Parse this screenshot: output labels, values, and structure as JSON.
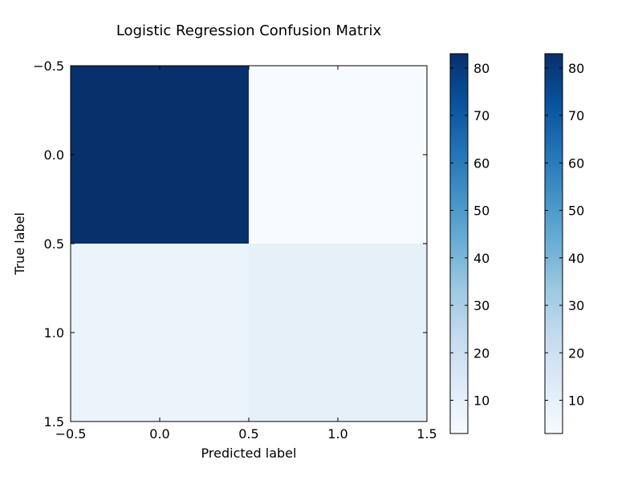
{
  "chart_data": {
    "type": "heatmap",
    "title": "Logistic Regression Confusion Matrix",
    "xlabel": "Predicted label",
    "ylabel": "True label",
    "xlim": [
      -0.5,
      1.5
    ],
    "ylim": [
      1.5,
      -0.5
    ],
    "xticks": [
      -0.5,
      0.0,
      0.5,
      1.0,
      1.5
    ],
    "xtick_labels": [
      "−0.5",
      "0.0",
      "0.5",
      "1.0",
      "1.5"
    ],
    "yticks": [
      -0.5,
      0.0,
      0.5,
      1.0,
      1.5
    ],
    "ytick_labels": [
      "−0.5",
      "0.0",
      "0.5",
      "1.0",
      "1.5"
    ],
    "matrix": [
      [
        83,
        3
      ],
      [
        8,
        10
      ]
    ],
    "colormap": "Blues",
    "color_min": 3,
    "color_max": 83,
    "grid": false,
    "colorbars": [
      {
        "ticks": [
          10,
          20,
          30,
          40,
          50,
          60,
          70,
          80
        ],
        "tick_labels": [
          "10",
          "20",
          "30",
          "40",
          "50",
          "60",
          "70",
          "80"
        ]
      },
      {
        "ticks": [
          10,
          20,
          30,
          40,
          50,
          60,
          70,
          80
        ],
        "tick_labels": [
          "10",
          "20",
          "30",
          "40",
          "50",
          "60",
          "70",
          "80"
        ]
      }
    ]
  }
}
